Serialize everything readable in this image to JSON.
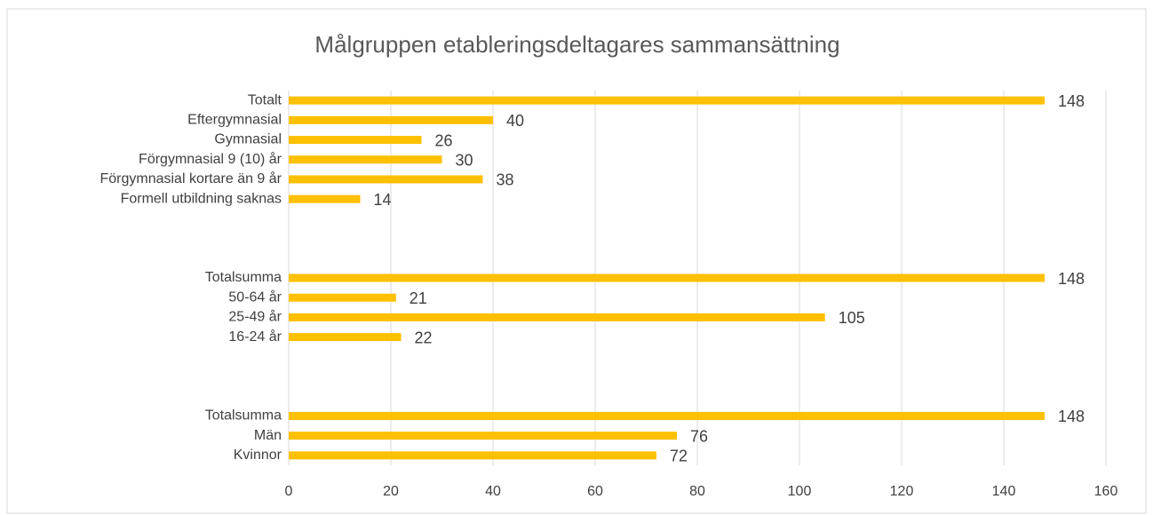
{
  "chart_data": {
    "type": "bar",
    "orientation": "horizontal",
    "title": "Målgruppen etableringsdeltagares sammansättning",
    "categories": [
      "Totalt",
      "Eftergymnasial",
      "Gymnasial",
      "Förgymnasial 9 (10) år",
      "Förgymnasial kortare än 9 år",
      "Formell utbildning saknas",
      null,
      null,
      null,
      "Totalsumma",
      "50-64 år",
      "25-49 år",
      "16-24 år",
      null,
      null,
      null,
      "Totalsumma",
      "Män",
      "Kvinnor"
    ],
    "values": [
      148,
      40,
      26,
      30,
      38,
      14,
      null,
      null,
      null,
      148,
      21,
      105,
      22,
      null,
      null,
      null,
      148,
      76,
      72
    ],
    "color": "#ffc000",
    "xlim": [
      0,
      160
    ],
    "xticks": [
      0,
      20,
      40,
      60,
      80,
      100,
      120,
      140,
      160
    ],
    "grid": true
  }
}
